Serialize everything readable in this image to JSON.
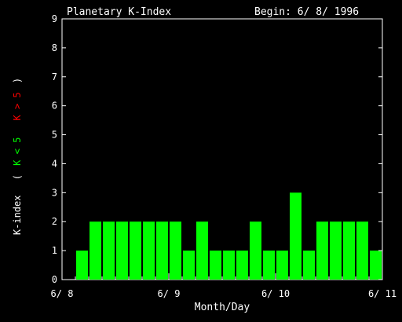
{
  "chart_data": {
    "type": "bar",
    "title": "Planetary K-Index",
    "subtitle": "Begin: 6/ 8/ 1996",
    "xlabel": "Month/Day",
    "ylabel": {
      "prefix": "K-index",
      "open": "(",
      "low": "K < 5",
      "high": "K > 5",
      "close": ")"
    },
    "ylim": [
      0,
      9
    ],
    "yticks": [
      "0",
      "1",
      "2",
      "3",
      "4",
      "5",
      "6",
      "7",
      "8",
      "9"
    ],
    "xlim": [
      0,
      24
    ],
    "xticks": [
      {
        "pos": 0,
        "label": "6/ 8"
      },
      {
        "pos": 8,
        "label": "6/ 9"
      },
      {
        "pos": 16,
        "label": "6/ 10"
      },
      {
        "pos": 24,
        "label": "6/ 11"
      }
    ],
    "values": [
      0,
      1,
      2,
      2,
      2,
      2,
      2,
      2,
      2,
      1,
      2,
      1,
      1,
      1,
      2,
      1,
      1,
      3,
      1,
      2,
      2,
      2,
      2,
      1
    ],
    "colors": {
      "low": "#00ff00",
      "high": "#ff0000",
      "axes": "#ffffff",
      "background": "#000000"
    }
  }
}
